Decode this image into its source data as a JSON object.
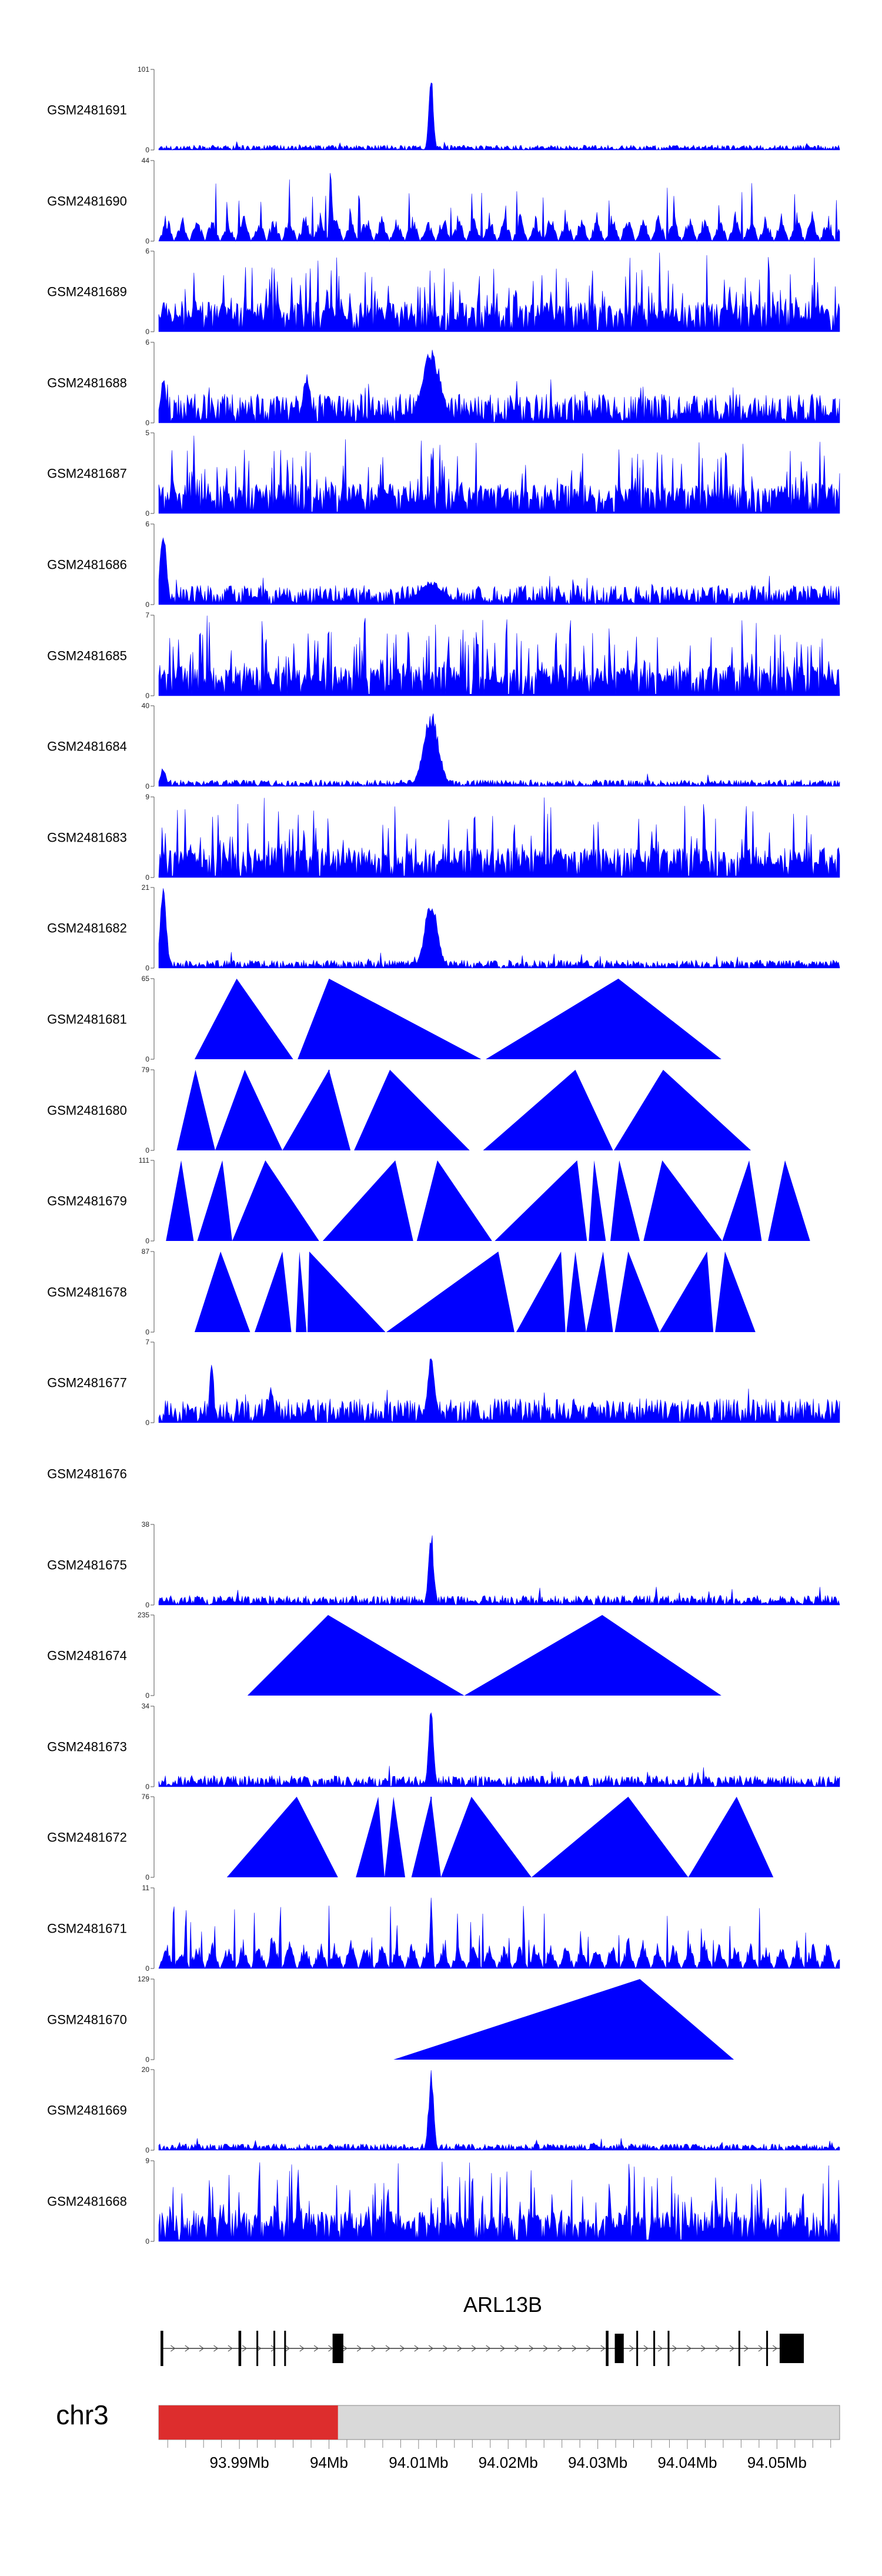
{
  "chart_data": {
    "type": "area",
    "description_units": "genomic coverage tracks",
    "x_axis": {
      "range": [
        93.981,
        94.057
      ],
      "unit": "Mb",
      "ticks": [
        93.99,
        94.0,
        94.01,
        94.02,
        94.03,
        94.04,
        94.05
      ],
      "tick_labels": [
        "93.99Mb",
        "94Mb",
        "94.01Mb",
        "94.02Mb",
        "94.03Mb",
        "94.04Mb",
        "94.05Mb"
      ]
    },
    "tracks": [
      {
        "name": "GSM2481691",
        "ymax": 101,
        "ymin": 0,
        "pattern": "peak_sparse",
        "base": 0.03,
        "peaks": [
          [
            94.0114,
            1.0,
            0.00035
          ]
        ]
      },
      {
        "name": "GSM2481690",
        "ymax": 44,
        "ymin": 0,
        "pattern": "triangles_dense",
        "peaks": [
          [
            94.0002,
            1.0,
            0.0002
          ]
        ]
      },
      {
        "name": "GSM2481689",
        "ymax": 6,
        "ymin": 0,
        "pattern": "spiky",
        "density": 1.0
      },
      {
        "name": "GSM2481688",
        "ymax": 6,
        "ymin": 0,
        "pattern": "peak_noisy",
        "base": 0.18,
        "peaks": [
          [
            94.0114,
            0.95,
            0.0015
          ],
          [
            93.9975,
            0.65,
            0.0006
          ],
          [
            93.9815,
            0.6,
            0.0004
          ]
        ]
      },
      {
        "name": "GSM2481687",
        "ymax": 5,
        "ymin": 0,
        "pattern": "spiky",
        "density": 1.0
      },
      {
        "name": "GSM2481686",
        "ymax": 6,
        "ymin": 0,
        "pattern": "peak_noisy",
        "base": 0.12,
        "peaks": [
          [
            93.9815,
            0.95,
            0.0005
          ],
          [
            94.0114,
            0.3,
            0.002
          ]
        ]
      },
      {
        "name": "GSM2481685",
        "ymax": 7,
        "ymin": 0,
        "pattern": "spiky",
        "density": 1.2
      },
      {
        "name": "GSM2481684",
        "ymax": 40,
        "ymin": 0,
        "pattern": "peak_sparse",
        "base": 0.04,
        "peaks": [
          [
            94.0114,
            0.95,
            0.0012
          ],
          [
            93.9815,
            0.25,
            0.0004
          ]
        ]
      },
      {
        "name": "GSM2481683",
        "ymax": 9,
        "ymin": 0,
        "pattern": "spiky",
        "density": 0.8
      },
      {
        "name": "GSM2481682",
        "ymax": 21,
        "ymin": 0,
        "pattern": "peak_sparse",
        "base": 0.05,
        "peaks": [
          [
            93.9815,
            1.0,
            0.0005
          ],
          [
            94.0114,
            0.9,
            0.001
          ]
        ]
      },
      {
        "name": "GSM2481681",
        "ymax": 65,
        "ymin": 0,
        "pattern": "triangles",
        "triangles": [
          [
            93.985,
            93.9897,
            93.996
          ],
          [
            93.9965,
            94.0,
            94.017
          ],
          [
            94.0175,
            94.0323,
            94.0438
          ]
        ]
      },
      {
        "name": "GSM2481680",
        "ymax": 79,
        "ymin": 0,
        "pattern": "triangles",
        "triangles": [
          [
            93.983,
            93.9851,
            93.9873
          ],
          [
            93.9873,
            93.9906,
            93.9948
          ],
          [
            93.9948,
            94.0,
            94.0024
          ],
          [
            94.0028,
            94.0068,
            94.0157
          ],
          [
            94.0172,
            94.0275,
            94.0317
          ],
          [
            94.0318,
            94.0373,
            94.0471
          ]
        ],
        "spikes": [
          [
            94.0,
            1.0
          ]
        ]
      },
      {
        "name": "GSM2481679",
        "ymax": 111,
        "ymin": 0,
        "pattern": "triangles",
        "triangles": [
          [
            93.9818,
            93.9835,
            93.9849
          ],
          [
            93.9853,
            93.9881,
            93.9892
          ],
          [
            93.9892,
            93.9929,
            93.9989
          ],
          [
            93.9993,
            94.0074,
            94.0094
          ],
          [
            94.0098,
            94.0121,
            94.0182
          ],
          [
            94.0185,
            94.0277,
            94.0288
          ],
          [
            94.029,
            94.0296,
            94.0309
          ],
          [
            94.0314,
            94.0324,
            94.0347
          ],
          [
            94.0351,
            94.0372,
            94.0439
          ],
          [
            94.0439,
            94.0469,
            94.0483
          ],
          [
            94.049,
            94.0509,
            94.0537
          ]
        ],
        "spikes": [
          [
            94.0114,
            0.6
          ]
        ]
      },
      {
        "name": "GSM2481678",
        "ymax": 87,
        "ymin": 0,
        "pattern": "triangles",
        "triangles": [
          [
            93.985,
            93.9879,
            93.9912
          ],
          [
            93.9917,
            93.9948,
            93.9958
          ],
          [
            93.9963,
            93.9967,
            93.9975
          ],
          [
            93.9976,
            93.9978,
            94.0063
          ],
          [
            94.0064,
            94.0189,
            94.0207
          ],
          [
            94.0209,
            94.0259,
            94.0264
          ],
          [
            94.0265,
            94.0275,
            94.0287
          ],
          [
            94.0287,
            94.0306,
            94.0317
          ],
          [
            94.0319,
            94.0334,
            94.0369
          ],
          [
            94.0369,
            94.0422,
            94.0429
          ],
          [
            94.0431,
            94.0442,
            94.0476
          ]
        ],
        "spikes": [
          [
            94.0247,
            0.25
          ]
        ]
      },
      {
        "name": "GSM2481677",
        "ymax": 7,
        "ymin": 0,
        "pattern": "peak_noisy",
        "base": 0.15,
        "peaks": [
          [
            93.9869,
            0.95,
            0.0003
          ],
          [
            93.9935,
            0.5,
            0.0004
          ],
          [
            94.0114,
            0.85,
            0.0006
          ]
        ]
      },
      {
        "name": "GSM2481676",
        "ymax": null,
        "ymin": null,
        "pattern": "empty"
      },
      {
        "name": "GSM2481675",
        "ymax": 38,
        "ymin": 0,
        "pattern": "peak_sparse",
        "base": 0.06,
        "peaks": [
          [
            94.0114,
            0.95,
            0.0004
          ]
        ]
      },
      {
        "name": "GSM2481674",
        "ymax": 235,
        "ymin": 0,
        "pattern": "triangles",
        "triangles": [
          [
            93.9909,
            93.9999,
            94.0151
          ],
          [
            94.0151,
            94.0305,
            94.0438
          ]
        ]
      },
      {
        "name": "GSM2481673",
        "ymax": 34,
        "ymin": 0,
        "pattern": "peak_sparse",
        "base": 0.07,
        "peaks": [
          [
            94.0114,
            1.0,
            0.0004
          ]
        ]
      },
      {
        "name": "GSM2481672",
        "ymax": 76,
        "ymin": 0,
        "pattern": "triangles",
        "triangles": [
          [
            93.9886,
            93.9964,
            94.001
          ],
          [
            94.003,
            94.0055,
            94.0062
          ],
          [
            94.0062,
            94.0072,
            94.0085
          ],
          [
            94.0092,
            94.0114,
            94.0125
          ],
          [
            94.0125,
            94.0159,
            94.0226
          ],
          [
            94.0226,
            94.0334,
            94.0401
          ],
          [
            94.0401,
            94.0455,
            94.0496
          ]
        ],
        "spikes": [
          [
            94.0114,
            1.0
          ]
        ]
      },
      {
        "name": "GSM2481671",
        "ymax": 11,
        "ymin": 0,
        "pattern": "triangles_dense",
        "peaks": [
          [
            94.0114,
            1.0,
            0.0002
          ]
        ]
      },
      {
        "name": "GSM2481670",
        "ymax": 129,
        "ymin": 0,
        "pattern": "triangles",
        "triangles": [
          [
            94.0072,
            94.0347,
            94.0452
          ]
        ]
      },
      {
        "name": "GSM2481669",
        "ymax": 20,
        "ymin": 0,
        "pattern": "peak_sparse",
        "base": 0.04,
        "peaks": [
          [
            94.0114,
            1.0,
            0.0004
          ]
        ]
      },
      {
        "name": "GSM2481668",
        "ymax": 9,
        "ymin": 0,
        "pattern": "spiky",
        "density": 1.1
      }
    ],
    "gene": {
      "name": "ARL13B",
      "exons": [
        [
          93.9812,
          93.9815,
          "thin"
        ],
        [
          93.9899,
          93.9902,
          "thin"
        ],
        [
          93.9919,
          93.9921,
          "thin"
        ],
        [
          93.9938,
          93.994,
          "thin"
        ],
        [
          93.995,
          93.9952,
          "thin"
        ],
        [
          94.0004,
          94.0016,
          "thick"
        ],
        [
          94.0309,
          94.0312,
          "thin"
        ],
        [
          94.0319,
          94.0329,
          "thick"
        ],
        [
          94.0343,
          94.0345,
          "thin"
        ],
        [
          94.0362,
          94.0364,
          "thin"
        ],
        [
          94.0378,
          94.038,
          "thin"
        ],
        [
          94.0457,
          94.0459,
          "thin"
        ],
        [
          94.0488,
          94.049,
          "thin"
        ],
        [
          94.0503,
          94.053,
          "thick"
        ]
      ]
    },
    "ideogram": {
      "chromosome": "chr3",
      "highlight_range": [
        93.981,
        94.001
      ]
    }
  }
}
